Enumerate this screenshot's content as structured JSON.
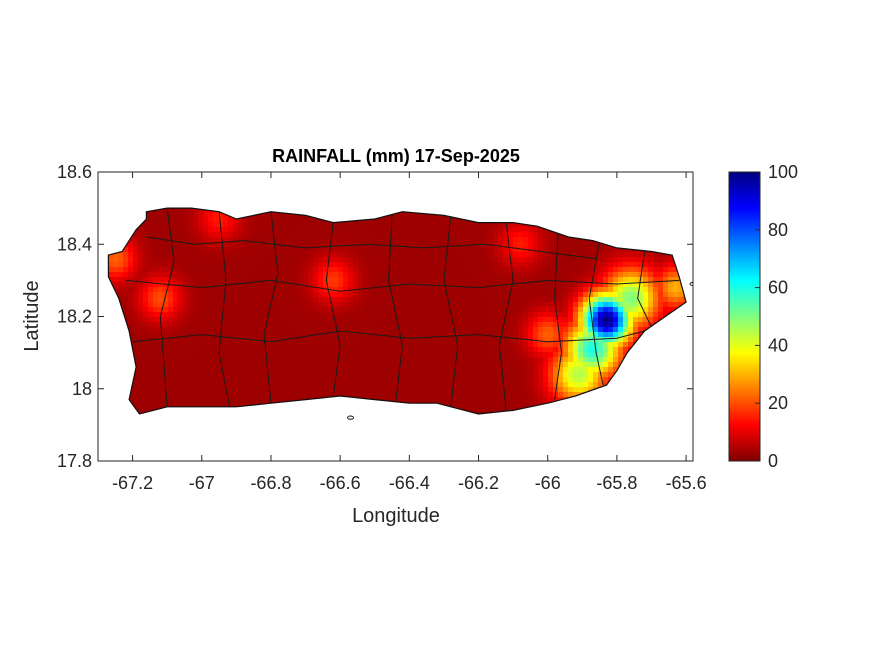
{
  "title": "RAINFALL (mm) 17-Sep-2025",
  "x_axis": {
    "label": "Longitude",
    "range": [
      -67.3,
      -65.58
    ],
    "ticks": [
      {
        "value": -67.2,
        "label": "-67.2"
      },
      {
        "value": -67.0,
        "label": "-67"
      },
      {
        "value": -66.8,
        "label": "-66.8"
      },
      {
        "value": -66.6,
        "label": "-66.6"
      },
      {
        "value": -66.4,
        "label": "-66.4"
      },
      {
        "value": -66.2,
        "label": "-66.2"
      },
      {
        "value": -66.0,
        "label": "-66"
      },
      {
        "value": -65.8,
        "label": "-65.8"
      },
      {
        "value": -65.6,
        "label": "-65.6"
      }
    ]
  },
  "y_axis": {
    "label": "Latitude",
    "range": [
      17.8,
      18.6
    ],
    "ticks": [
      {
        "value": 17.8,
        "label": "17.8"
      },
      {
        "value": 18.0,
        "label": "18"
      },
      {
        "value": 18.2,
        "label": "18.2"
      },
      {
        "value": 18.4,
        "label": "18.4"
      },
      {
        "value": 18.6,
        "label": "18.6"
      }
    ]
  },
  "colorbar": {
    "range": [
      0,
      100
    ],
    "ticks": [
      {
        "value": 0,
        "label": "0"
      },
      {
        "value": 20,
        "label": "20"
      },
      {
        "value": 40,
        "label": "40"
      },
      {
        "value": 60,
        "label": "60"
      },
      {
        "value": 80,
        "label": "80"
      },
      {
        "value": 100,
        "label": "100"
      }
    ],
    "colormap": [
      "#800000",
      "#ff0000",
      "#ff8000",
      "#ffff00",
      "#80ff80",
      "#00ffff",
      "#0080ff",
      "#0000ff",
      "#000080"
    ]
  },
  "chart_data": {
    "type": "heatmap",
    "variable": "rainfall_mm",
    "date": "17-Sep-2025",
    "peak": {
      "lon": -65.83,
      "lat": 18.19,
      "value_mm": 100
    },
    "hotspots_mm": [
      {
        "lon": -65.83,
        "lat": 18.19,
        "value_mm": 100
      },
      {
        "lon": -65.87,
        "lat": 18.11,
        "value_mm": 60
      },
      {
        "lon": -65.76,
        "lat": 18.25,
        "value_mm": 50
      },
      {
        "lon": -65.91,
        "lat": 18.04,
        "value_mm": 45
      },
      {
        "lon": -65.63,
        "lat": 18.28,
        "value_mm": 30
      },
      {
        "lon": -66.0,
        "lat": 18.15,
        "value_mm": 22
      },
      {
        "lon": -67.25,
        "lat": 18.36,
        "value_mm": 22
      },
      {
        "lon": -67.12,
        "lat": 18.25,
        "value_mm": 20
      },
      {
        "lon": -66.62,
        "lat": 18.3,
        "value_mm": 18
      },
      {
        "lon": -66.95,
        "lat": 18.47,
        "value_mm": 15
      },
      {
        "lon": -66.08,
        "lat": 18.4,
        "value_mm": 15
      }
    ],
    "background_mm": 3
  }
}
